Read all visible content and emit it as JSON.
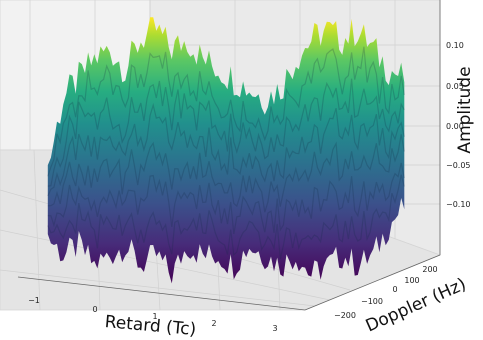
{
  "chart_data": {
    "type": "surface3d",
    "colormap": "viridis",
    "xlabel": "Retard (Tc)",
    "ylabel": "Doppler (Hz)",
    "zlabel": "Amplitude",
    "x_ticks": [
      "−1",
      "0",
      "1",
      "2",
      "3"
    ],
    "y_ticks": [
      "−200",
      "−100",
      "0",
      "100",
      "200"
    ],
    "z_ticks": [
      "0.10",
      "0.05",
      "0.00",
      "−0.05",
      "−0.10"
    ],
    "xlim": [
      -1.3,
      3.5
    ],
    "ylim": [
      -250,
      250
    ],
    "zlim": [
      -0.14,
      0.12
    ],
    "grid": true,
    "surface_profile": {
      "x": [
        -1.2,
        -1.0,
        -0.8,
        -0.6,
        -0.4,
        -0.2,
        0.0,
        0.2,
        0.4,
        0.6,
        0.8,
        1.0,
        1.2,
        1.4,
        1.6,
        1.8,
        2.0,
        2.2,
        2.4,
        2.6,
        2.8,
        3.0,
        3.2,
        3.4
      ],
      "top_z": [
        -0.03,
        0.04,
        0.06,
        0.08,
        0.09,
        0.07,
        0.1,
        0.11,
        0.09,
        0.1,
        0.08,
        0.07,
        0.06,
        0.05,
        0.04,
        0.05,
        0.08,
        0.1,
        0.11,
        0.1,
        0.11,
        0.09,
        0.07,
        0.06
      ],
      "bottom_z": [
        -0.1,
        -0.12,
        -0.11,
        -0.13,
        -0.12,
        -0.11,
        -0.13,
        -0.12,
        -0.14,
        -0.11,
        -0.12,
        -0.12,
        -0.13,
        -0.11,
        -0.12,
        -0.13,
        -0.12,
        -0.14,
        -0.13,
        -0.12,
        -0.13,
        -0.12,
        -0.09,
        -0.07
      ]
    }
  }
}
